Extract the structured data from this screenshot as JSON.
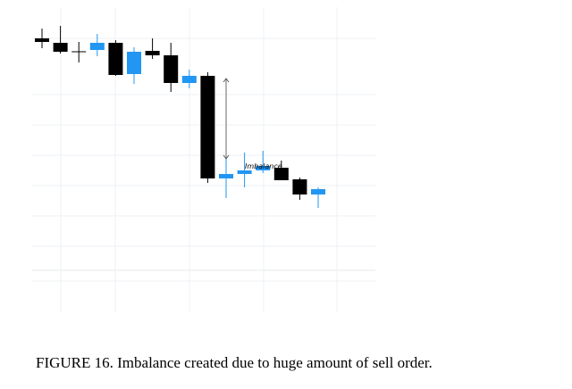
{
  "chart_data": {
    "type": "candlestick",
    "colors": {
      "bullish": "#2196f3",
      "bearish": "#000000",
      "grid": "#eef1f4"
    },
    "grid": true,
    "candles": [
      {
        "open": 100.0,
        "high": 104.4,
        "low": 95.6,
        "close": 98.4,
        "direction": "bearish"
      },
      {
        "open": 98.0,
        "high": 105.6,
        "low": 93.2,
        "close": 94.0,
        "direction": "bearish"
      },
      {
        "open": 94.0,
        "high": 98.4,
        "low": 89.2,
        "close": 94.0,
        "direction": "doji"
      },
      {
        "open": 94.8,
        "high": 102.0,
        "low": 92.0,
        "close": 98.0,
        "direction": "bullish"
      },
      {
        "open": 98.0,
        "high": 99.2,
        "low": 83.2,
        "close": 83.6,
        "direction": "bearish"
      },
      {
        "open": 84.0,
        "high": 96.0,
        "low": 79.6,
        "close": 94.0,
        "direction": "bullish"
      },
      {
        "open": 94.4,
        "high": 100.0,
        "low": 90.8,
        "close": 92.4,
        "direction": "bearish"
      },
      {
        "open": 92.4,
        "high": 98.0,
        "low": 76.0,
        "close": 80.0,
        "direction": "bearish"
      },
      {
        "open": 80.0,
        "high": 86.0,
        "low": 77.6,
        "close": 83.2,
        "direction": "bullish"
      },
      {
        "open": 83.2,
        "high": 84.8,
        "low": 35.2,
        "close": 37.2,
        "direction": "bearish"
      },
      {
        "open": 37.2,
        "high": 46.4,
        "low": 28.4,
        "close": 39.2,
        "direction": "bullish"
      },
      {
        "open": 39.2,
        "high": 48.8,
        "low": 33.2,
        "close": 40.8,
        "direction": "bullish"
      },
      {
        "open": 40.8,
        "high": 49.6,
        "low": 39.6,
        "close": 42.8,
        "direction": "bullish"
      },
      {
        "open": 42.0,
        "high": 45.2,
        "low": 36.4,
        "close": 36.4,
        "direction": "bearish"
      },
      {
        "open": 36.8,
        "high": 37.6,
        "low": 27.6,
        "close": 30.0,
        "direction": "bearish"
      },
      {
        "open": 32.4,
        "high": 33.2,
        "low": 24.0,
        "close": 30.0,
        "direction": "bullish"
      }
    ],
    "annotations": [
      {
        "text": "Imbalance",
        "arrow_from": 82.0,
        "arrow_to": 46.0
      }
    ],
    "xlabel": "",
    "ylabel": ""
  },
  "caption": "FIGURE 16. Imbalance created due to huge amount of sell order."
}
